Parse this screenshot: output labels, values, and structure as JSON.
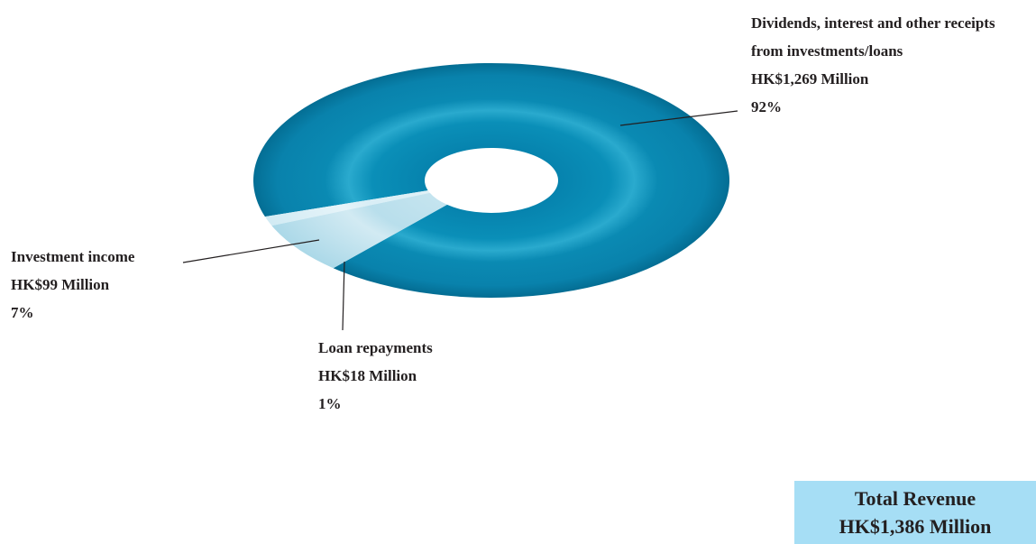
{
  "chart_data": {
    "type": "pie",
    "style": "3d-donut",
    "slices": [
      {
        "label_lines": [
          "Dividends, interest and other receipts",
          "from investments/loans"
        ],
        "amount": "HK$1,269 Million",
        "value": 1269,
        "percent": "92%",
        "color": "#0a8fb8"
      },
      {
        "label_lines": [
          "Investment income"
        ],
        "amount": "HK$99 Million",
        "value": 99,
        "percent": "7%",
        "color": "#7fc4dc"
      },
      {
        "label_lines": [
          "Loan repayments"
        ],
        "amount": "HK$18 Million",
        "value": 18,
        "percent": "1%",
        "color": "#b9e0ee"
      }
    ],
    "total": {
      "title": "Total Revenue",
      "amount": "HK$1,386 Million",
      "value": 1386
    }
  }
}
